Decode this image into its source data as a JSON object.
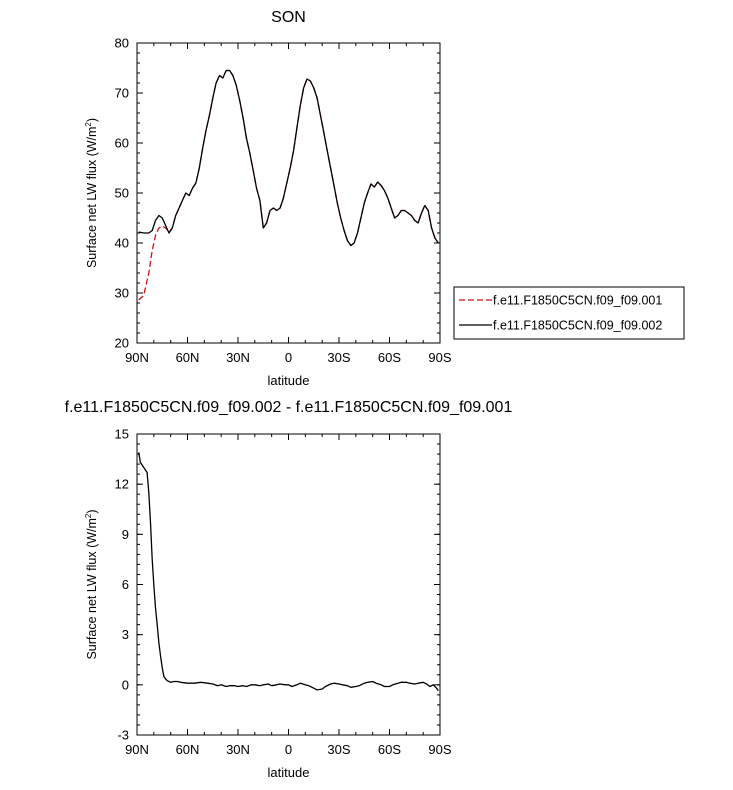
{
  "chart_data": [
    {
      "type": "line",
      "title": "SON",
      "xlabel": "latitude",
      "ylabel_main": "Surface net LW flux (W/m",
      "ylabel_sup": "2",
      "ylabel_close": ")",
      "xlim": [
        90,
        -90
      ],
      "ylim": [
        20,
        80
      ],
      "x_ticks": [
        90,
        60,
        30,
        0,
        -30,
        -60,
        -90
      ],
      "x_tick_labels": [
        "90N",
        "60N",
        "30N",
        "0",
        "30S",
        "60S",
        "90S"
      ],
      "y_ticks": [
        20,
        30,
        40,
        50,
        60,
        70,
        80
      ],
      "y_tick_labels": [
        "20",
        "30",
        "40",
        "50",
        "60",
        "70",
        "80"
      ],
      "legend": "outside-right",
      "series": [
        {
          "name": "f.e11.F1850C5CN.f09_f09.001",
          "color": "#cc1111",
          "dash": "dashed",
          "x": [
            89,
            86,
            83,
            81,
            79,
            77,
            75,
            73,
            71,
            69,
            67,
            65,
            63,
            61,
            59,
            57,
            55,
            53,
            51,
            49,
            47,
            45,
            43,
            41,
            39,
            37,
            35,
            33,
            31,
            29,
            27,
            25,
            23,
            21,
            19,
            17,
            15,
            13,
            11,
            9,
            7,
            5,
            3,
            1,
            -1,
            -3,
            -5,
            -7,
            -9,
            -11,
            -13,
            -15,
            -17,
            -19,
            -21,
            -23,
            -25,
            -27,
            -29,
            -31,
            -33,
            -35,
            -37,
            -39,
            -41,
            -43,
            -45,
            -47,
            -49,
            -51,
            -53,
            -55,
            -57,
            -59,
            -61,
            -63,
            -65,
            -67,
            -69,
            -71,
            -73,
            -75,
            -77,
            -79,
            -81,
            -83,
            -85,
            -87,
            -89
          ],
          "y": [
            28.6,
            29.5,
            34,
            38.5,
            41.5,
            43,
            43.4,
            43,
            42.2,
            43,
            45.5,
            47,
            48.5,
            50,
            49.5,
            51,
            52,
            55,
            59,
            62.5,
            65.5,
            69,
            72,
            73.5,
            73,
            74.5,
            74.5,
            73.5,
            71.5,
            68.5,
            65,
            61,
            58,
            54.5,
            51,
            48.5,
            43,
            44,
            46.5,
            47,
            46.5,
            47,
            49,
            52,
            55,
            58.5,
            63,
            67.5,
            71,
            72.8,
            72.4,
            71,
            69,
            65.5,
            62,
            58.5,
            55,
            51.5,
            48,
            45,
            42.5,
            40.5,
            39.5,
            40,
            42,
            45,
            48,
            50,
            51.8,
            51.2,
            52.2,
            51.5,
            50.5,
            49,
            47,
            45,
            45.5,
            46.5,
            46.5,
            46,
            45.5,
            44.5,
            44,
            46,
            47.5,
            46.5,
            43,
            41,
            40
          ]
        },
        {
          "name": "f.e11.F1850C5CN.f09_f09.002",
          "color": "#000000",
          "dash": "solid",
          "x": [
            89,
            86,
            83,
            81,
            79,
            77,
            75,
            73,
            71,
            69,
            67,
            65,
            63,
            61,
            59,
            57,
            55,
            53,
            51,
            49,
            47,
            45,
            43,
            41,
            39,
            37,
            35,
            33,
            31,
            29,
            27,
            25,
            23,
            21,
            19,
            17,
            15,
            13,
            11,
            9,
            7,
            5,
            3,
            1,
            -1,
            -3,
            -5,
            -7,
            -9,
            -11,
            -13,
            -15,
            -17,
            -19,
            -21,
            -23,
            -25,
            -27,
            -29,
            -31,
            -33,
            -35,
            -37,
            -39,
            -41,
            -43,
            -45,
            -47,
            -49,
            -51,
            -53,
            -55,
            -57,
            -59,
            -61,
            -63,
            -65,
            -67,
            -69,
            -71,
            -73,
            -75,
            -77,
            -79,
            -81,
            -83,
            -85,
            -87,
            -89
          ],
          "y": [
            42.2,
            42,
            42,
            42.5,
            44.5,
            45.5,
            45,
            43.5,
            42,
            43,
            45.5,
            47,
            48.5,
            50,
            49.5,
            51,
            52,
            55,
            59,
            62.5,
            65.5,
            69,
            72,
            73.5,
            73,
            74.5,
            74.5,
            73.5,
            71.5,
            68.5,
            65,
            61,
            58,
            54.5,
            51,
            48.5,
            43,
            44,
            46.5,
            47,
            46.5,
            47,
            49,
            52,
            55,
            58.5,
            63,
            67.5,
            71,
            72.8,
            72.4,
            71,
            69,
            65.5,
            62,
            58.5,
            55,
            51.5,
            48,
            45,
            42.5,
            40.5,
            39.5,
            40,
            42,
            45,
            48,
            50,
            51.8,
            51.2,
            52.2,
            51.5,
            50.5,
            49,
            47,
            45,
            45.5,
            46.5,
            46.5,
            46,
            45.5,
            44.5,
            44,
            46,
            47.5,
            46.5,
            43,
            41,
            40
          ]
        }
      ]
    },
    {
      "type": "line",
      "title": "f.e11.F1850C5CN.f09_f09.002 - f.e11.F1850C5CN.f09_f09.001",
      "xlabel": "latitude",
      "ylabel_main": "Surface net LW flux (W/m",
      "ylabel_sup": "2",
      "ylabel_close": ")",
      "xlim": [
        90,
        -90
      ],
      "ylim": [
        -3,
        15
      ],
      "x_ticks": [
        90,
        60,
        30,
        0,
        -30,
        -60,
        -90
      ],
      "x_tick_labels": [
        "90N",
        "60N",
        "30N",
        "0",
        "30S",
        "60S",
        "90S"
      ],
      "y_ticks": [
        -3,
        0,
        3,
        6,
        9,
        12,
        15
      ],
      "y_tick_labels": [
        "-3",
        "0",
        "3",
        "6",
        "9",
        "12",
        "15"
      ],
      "series": [
        {
          "color": "#000000",
          "dash": "solid",
          "x": [
            89,
            88,
            86,
            84,
            83,
            82,
            81,
            80,
            79,
            78,
            77,
            76,
            75,
            74,
            73,
            72,
            70,
            68,
            66,
            64,
            60,
            56,
            52,
            48,
            45,
            42,
            40,
            37,
            35,
            32,
            30,
            27,
            25,
            22,
            20,
            17,
            15,
            12,
            10,
            7,
            5,
            2,
            0,
            -2,
            -5,
            -7,
            -10,
            -12,
            -15,
            -17,
            -20,
            -22,
            -25,
            -27,
            -30,
            -32,
            -35,
            -37,
            -40,
            -42,
            -45,
            -47,
            -50,
            -52,
            -55,
            -57,
            -60,
            -62,
            -65,
            -67,
            -70,
            -72,
            -75,
            -77,
            -80,
            -82,
            -84,
            -86,
            -88,
            -89
          ],
          "y": [
            13.9,
            13.3,
            13.0,
            12.7,
            11.5,
            9.7,
            7.5,
            6.0,
            4.6,
            3.6,
            2.5,
            1.7,
            1.0,
            0.5,
            0.35,
            0.25,
            0.15,
            0.2,
            0.2,
            0.15,
            0.1,
            0.1,
            0.15,
            0.1,
            0.05,
            -0.05,
            0.0,
            -0.1,
            -0.05,
            -0.05,
            -0.1,
            -0.05,
            -0.1,
            0.0,
            0.0,
            -0.05,
            0.0,
            0.05,
            -0.05,
            0.0,
            0.05,
            0.0,
            0.0,
            -0.1,
            0.0,
            0.1,
            0.0,
            -0.05,
            -0.2,
            -0.3,
            -0.25,
            -0.1,
            0.05,
            0.1,
            0.05,
            0.0,
            -0.05,
            -0.15,
            -0.1,
            -0.05,
            0.1,
            0.15,
            0.2,
            0.1,
            0.0,
            -0.1,
            -0.1,
            0.0,
            0.1,
            0.15,
            0.15,
            0.1,
            0.05,
            0.1,
            0.15,
            0.05,
            -0.1,
            0.0,
            -0.2,
            -0.35
          ]
        }
      ]
    }
  ]
}
